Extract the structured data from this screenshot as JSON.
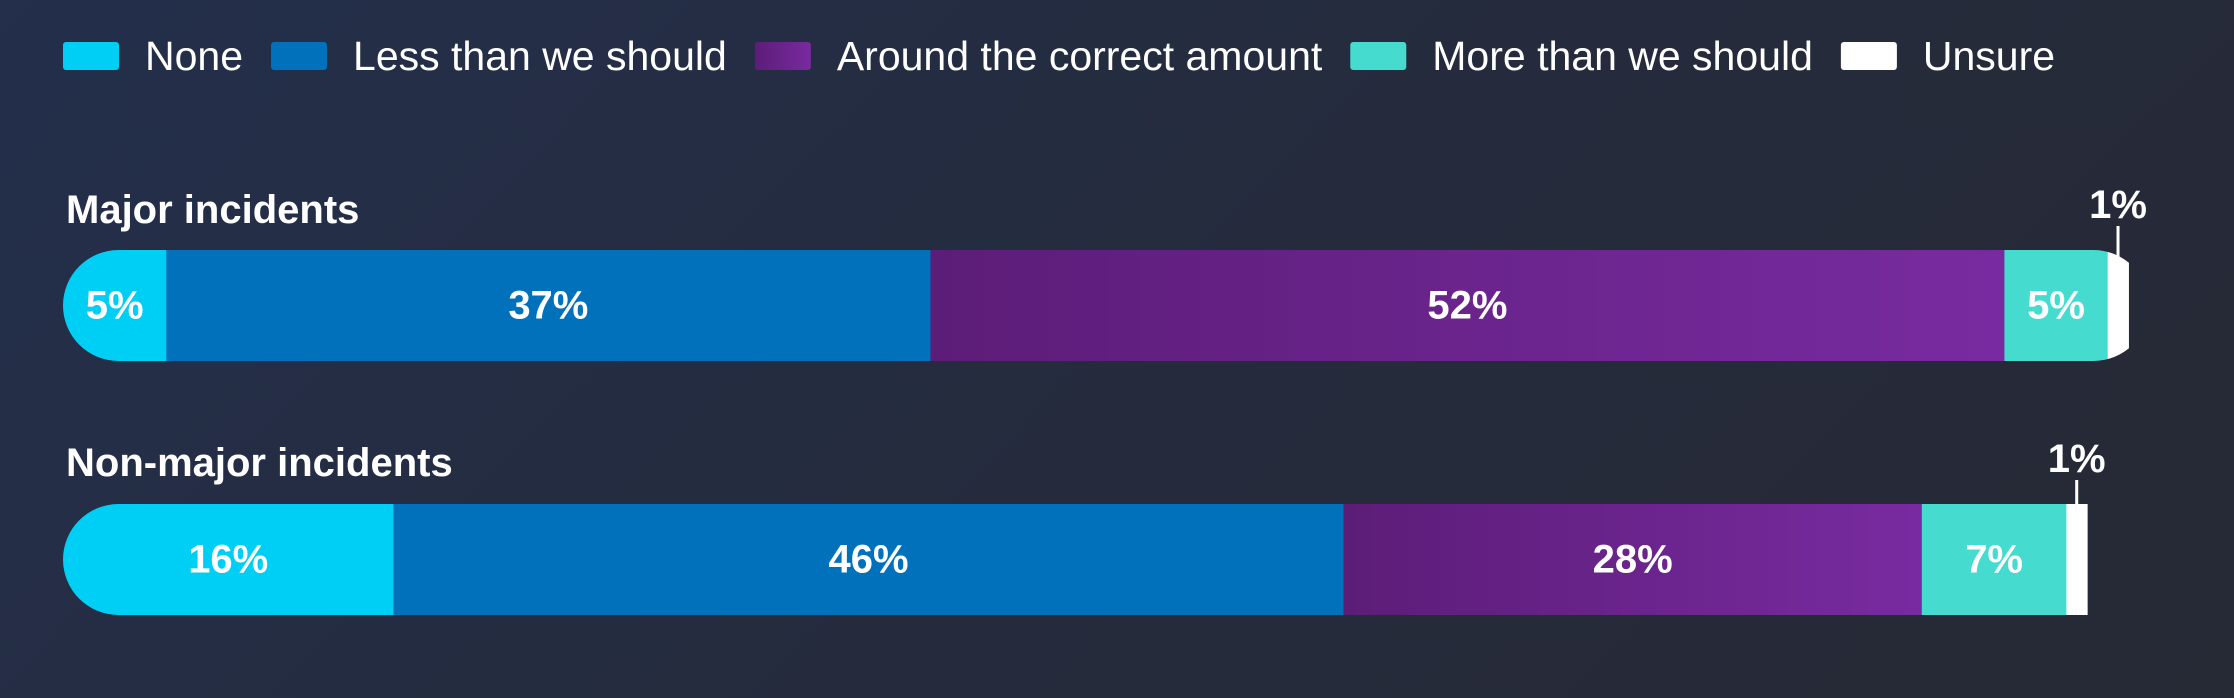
{
  "chart_data": {
    "type": "bar",
    "orientation": "horizontal",
    "stacked": true,
    "legend_position": "top",
    "categories": [
      "Major incidents",
      "Non-major incidents"
    ],
    "series": [
      {
        "name": "None",
        "values": [
          5,
          16
        ],
        "value_labels": [
          "5%",
          "16%"
        ],
        "color": "#00cff5"
      },
      {
        "name": "Less than we should",
        "values": [
          37,
          46
        ],
        "value_labels": [
          "37%",
          "46%"
        ],
        "color": "#0071ba"
      },
      {
        "name": "Around the correct amount",
        "values": [
          52,
          28
        ],
        "value_labels": [
          "52%",
          "28%"
        ],
        "color": "#6a2590"
      },
      {
        "name": "More than we should",
        "values": [
          5,
          7
        ],
        "value_labels": [
          "5%",
          "7%"
        ],
        "color": "#45dccf"
      },
      {
        "name": "Unsure",
        "values": [
          1,
          1
        ],
        "value_labels": [
          "1%",
          "1%"
        ],
        "color": "#ffffff"
      }
    ],
    "xlim": [
      0,
      101
    ]
  }
}
